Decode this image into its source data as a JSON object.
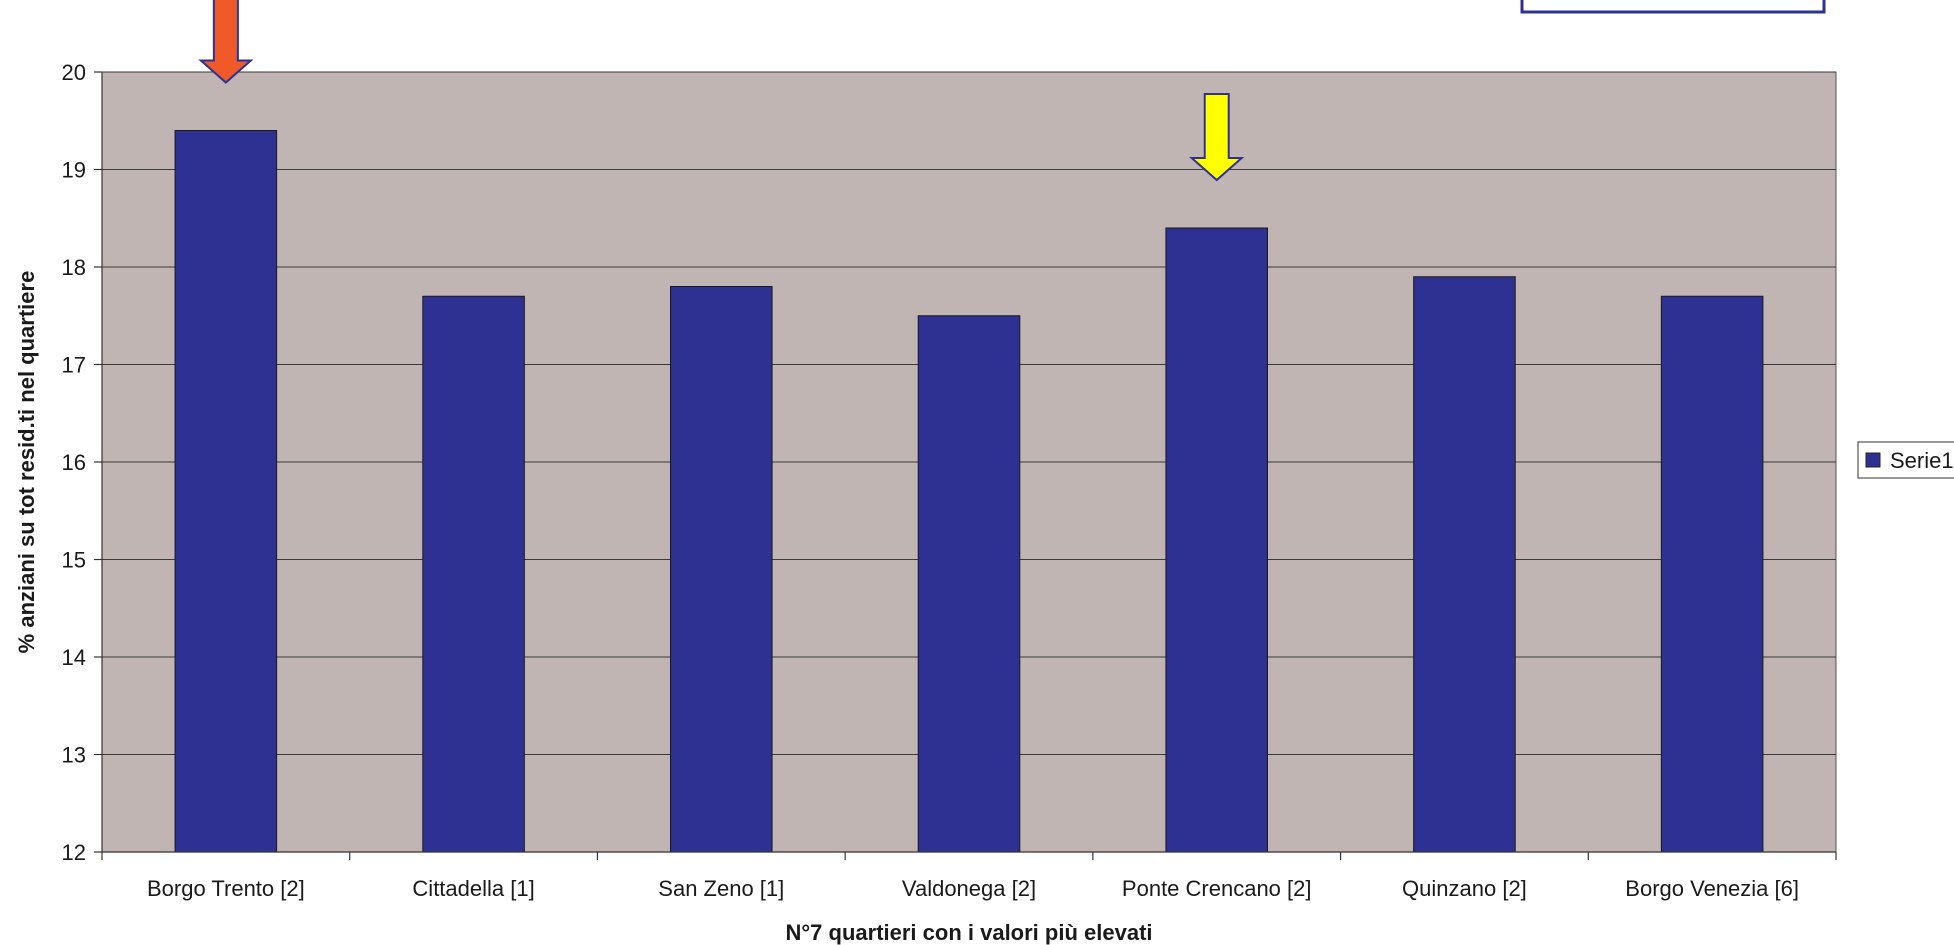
{
  "chart_data": {
    "type": "bar",
    "categories": [
      "Borgo Trento [2]",
      "Cittadella [1]",
      "San Zeno [1]",
      "Valdonega [2]",
      "Ponte Crencano [2]",
      "Quinzano [2]",
      "Borgo Venezia [6]"
    ],
    "series": [
      {
        "name": "Serie1",
        "values": [
          19.4,
          17.7,
          17.8,
          17.5,
          18.4,
          17.9,
          17.7
        ]
      }
    ],
    "title": "",
    "xlabel": "N°7 quartieri con i valori più elevati",
    "ylabel": "% anziani su tot resid.ti nel quartiere",
    "ylim": [
      12,
      20
    ],
    "yticks": [
      12,
      13,
      14,
      15,
      16,
      17,
      18,
      19,
      20
    ],
    "grid": true,
    "legend_position": "right",
    "annotations": [
      {
        "type": "arrow",
        "category": "Borgo Trento [2]",
        "color": "#f05a28"
      },
      {
        "type": "arrow",
        "category": "Ponte Crencano [2]",
        "color": "#ffff00"
      }
    ],
    "colors": {
      "bar": "#2e3192",
      "plot_background": "#c0b5b2",
      "gridline": "#3a3a3a",
      "frame": "#2e3192"
    }
  }
}
